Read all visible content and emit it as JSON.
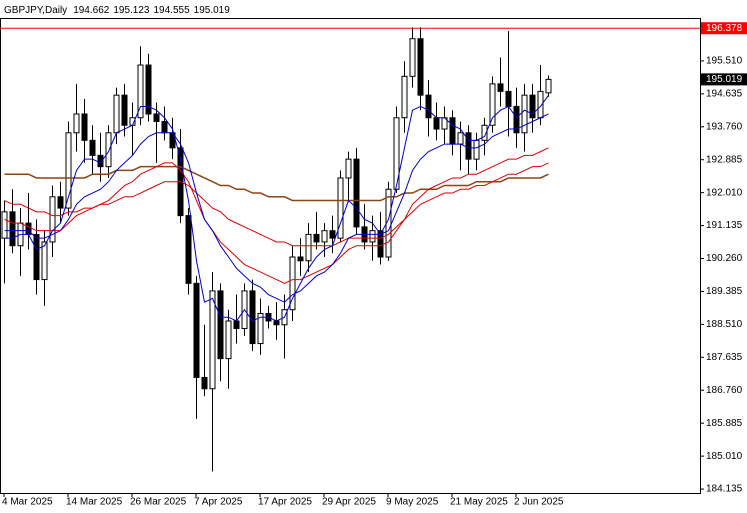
{
  "chart_data": {
    "type": "candlestick",
    "title": "GBPJPY,Daily",
    "categories": [
      "4 Mar 2025",
      null,
      null,
      null,
      null,
      null,
      null,
      null,
      "14 Mar 2025",
      null,
      null,
      null,
      null,
      null,
      null,
      null,
      "26 Mar 2025",
      null,
      null,
      null,
      null,
      null,
      null,
      null,
      "7 Apr 2025",
      null,
      null,
      null,
      null,
      null,
      null,
      null,
      "17 Apr 2025",
      null,
      null,
      null,
      null,
      null,
      null,
      null,
      "29 Apr 2025",
      null,
      null,
      null,
      null,
      null,
      null,
      null,
      "9 May 2025",
      null,
      null,
      null,
      null,
      null,
      null,
      null,
      "21 May 2025",
      null,
      null,
      null,
      null,
      null,
      null,
      null,
      "2 Jun 2025",
      null,
      null,
      null,
      null
    ],
    "open": [
      190.8,
      191.5,
      190.6,
      191.2,
      190.9,
      189.7,
      190.7,
      191.9,
      191.6,
      193.6,
      194.1,
      193.4,
      193.0,
      192.7,
      193.6,
      194.6,
      193.8,
      194.0,
      195.4,
      194.1,
      193.9,
      193.6,
      193.2,
      191.4,
      189.6,
      187.1,
      186.8,
      189.4,
      187.6,
      188.6,
      188.4,
      189.4,
      188.0,
      188.8,
      188.6,
      188.5,
      188.9,
      190.3,
      190.2,
      190.9,
      190.7,
      191.0,
      190.8,
      192.4,
      192.9,
      191.1,
      190.7,
      191.0,
      190.3,
      192.1,
      194.0,
      195.1,
      196.1,
      194.6,
      194.0,
      193.7,
      194.0,
      193.3,
      193.6,
      192.9,
      193.4,
      193.8,
      194.9,
      194.7,
      194.3,
      193.6,
      194.6,
      194.0,
      194.662
    ],
    "high": [
      191.8,
      192.1,
      191.6,
      192.0,
      191.3,
      191.0,
      192.2,
      192.3,
      193.9,
      194.9,
      194.5,
      193.8,
      193.6,
      193.8,
      194.8,
      194.9,
      194.4,
      195.9,
      195.7,
      194.4,
      194.3,
      194.0,
      193.7,
      191.6,
      189.8,
      188.5,
      189.9,
      189.6,
      188.9,
      189.3,
      189.6,
      189.7,
      189.2,
      189.0,
      189.1,
      189.3,
      190.6,
      190.8,
      191.2,
      191.5,
      191.2,
      191.4,
      192.6,
      193.1,
      193.2,
      191.7,
      191.4,
      191.5,
      192.3,
      194.3,
      195.5,
      196.4,
      196.4,
      195.0,
      194.4,
      194.3,
      194.2,
      193.9,
      193.8,
      193.6,
      194.0,
      195.1,
      195.6,
      196.3,
      194.8,
      194.9,
      194.9,
      195.4,
      195.123
    ],
    "low": [
      189.6,
      190.4,
      189.8,
      190.5,
      189.3,
      189.0,
      190.3,
      191.2,
      191.4,
      193.1,
      192.8,
      192.5,
      192.3,
      192.4,
      193.3,
      193.5,
      193.0,
      193.8,
      193.9,
      192.8,
      193.4,
      192.9,
      191.2,
      189.3,
      186.0,
      186.6,
      184.6,
      187.0,
      186.8,
      188.0,
      188.2,
      187.8,
      187.7,
      188.4,
      188.1,
      187.6,
      188.6,
      189.8,
      189.9,
      190.5,
      190.3,
      190.4,
      190.7,
      191.8,
      190.9,
      190.5,
      190.2,
      190.1,
      190.2,
      192.0,
      193.6,
      194.8,
      194.2,
      193.5,
      193.4,
      193.3,
      193.0,
      192.6,
      192.5,
      192.6,
      193.0,
      193.6,
      194.3,
      193.5,
      193.2,
      193.1,
      193.6,
      193.8,
      194.555
    ],
    "close": [
      191.5,
      190.6,
      191.2,
      190.9,
      189.7,
      190.7,
      191.9,
      191.6,
      193.6,
      194.1,
      193.4,
      193.0,
      192.7,
      193.6,
      194.6,
      193.8,
      194.0,
      195.4,
      194.1,
      193.9,
      193.6,
      193.2,
      191.4,
      189.6,
      187.1,
      186.8,
      189.4,
      187.6,
      188.6,
      188.4,
      189.4,
      188.0,
      188.8,
      188.6,
      188.5,
      188.9,
      190.3,
      190.2,
      190.9,
      190.7,
      191.0,
      190.8,
      192.4,
      192.9,
      191.1,
      190.7,
      191.0,
      190.3,
      192.1,
      194.0,
      195.1,
      196.1,
      194.6,
      194.0,
      193.7,
      194.0,
      193.3,
      193.6,
      192.9,
      193.4,
      193.8,
      194.9,
      194.7,
      194.3,
      193.6,
      194.6,
      194.0,
      194.7,
      195.019
    ],
    "up_color": "#ffffff",
    "down_color": "#000000",
    "series": [
      {
        "color": "#8b4513",
        "values": [
          192.5,
          192.5,
          192.5,
          192.5,
          192.4,
          192.4,
          192.4,
          192.4,
          192.4,
          192.4,
          192.4,
          192.5,
          192.5,
          192.5,
          192.6,
          192.6,
          192.6,
          192.7,
          192.7,
          192.7,
          192.7,
          192.7,
          192.7,
          192.6,
          192.5,
          192.4,
          192.3,
          192.2,
          192.2,
          192.1,
          192.1,
          192.0,
          192.0,
          191.9,
          191.9,
          191.9,
          191.8,
          191.8,
          191.8,
          191.8,
          191.8,
          191.8,
          191.8,
          191.8,
          191.8,
          191.8,
          191.8,
          191.8,
          191.9,
          191.9,
          192.0,
          192.0,
          192.1,
          192.1,
          192.1,
          192.2,
          192.2,
          192.2,
          192.2,
          192.3,
          192.3,
          192.3,
          192.3,
          192.4,
          192.4,
          192.4,
          192.4,
          192.4,
          192.5
        ]
      },
      {
        "color": "#dc0000",
        "values": [
          191.8,
          191.7,
          191.7,
          191.6,
          191.5,
          191.5,
          191.4,
          191.4,
          191.5,
          191.5,
          191.6,
          191.6,
          191.7,
          191.7,
          191.8,
          191.9,
          191.9,
          192.0,
          192.1,
          192.2,
          192.3,
          192.3,
          192.3,
          192.2,
          192.0,
          191.8,
          191.6,
          191.5,
          191.3,
          191.2,
          191.1,
          191.0,
          190.9,
          190.8,
          190.7,
          190.7,
          190.6,
          190.6,
          190.6,
          190.6,
          190.6,
          190.6,
          190.7,
          190.8,
          190.8,
          190.8,
          190.8,
          190.8,
          190.9,
          191.1,
          191.3,
          191.5,
          191.7,
          191.8,
          191.9,
          192.0,
          192.0,
          192.1,
          192.1,
          192.2,
          192.2,
          192.3,
          192.4,
          192.5,
          192.5,
          192.6,
          192.7,
          192.7,
          192.8
        ]
      },
      {
        "color": "#dc0000",
        "values": [
          191.3,
          191.2,
          191.2,
          191.1,
          191.0,
          191.0,
          191.0,
          191.0,
          191.2,
          191.4,
          191.5,
          191.6,
          191.7,
          191.8,
          192.0,
          192.2,
          192.3,
          192.5,
          192.6,
          192.7,
          192.8,
          192.8,
          192.6,
          192.3,
          191.8,
          191.3,
          191.0,
          190.7,
          190.5,
          190.3,
          190.1,
          190.0,
          189.9,
          189.8,
          189.7,
          189.6,
          189.7,
          189.7,
          189.8,
          189.9,
          190.0,
          190.1,
          190.3,
          190.5,
          190.6,
          190.6,
          190.6,
          190.6,
          190.7,
          191.0,
          191.3,
          191.7,
          191.9,
          192.1,
          192.2,
          192.3,
          192.4,
          192.4,
          192.5,
          192.5,
          192.6,
          192.7,
          192.8,
          192.9,
          192.9,
          193.0,
          193.0,
          193.1,
          193.2
        ]
      },
      {
        "color": "#0000cd",
        "values": [
          191.0,
          191.0,
          191.0,
          191.0,
          190.8,
          190.8,
          190.9,
          191.0,
          191.3,
          191.7,
          191.9,
          192.0,
          192.1,
          192.3,
          192.6,
          192.8,
          193.0,
          193.3,
          193.5,
          193.6,
          193.6,
          193.6,
          193.3,
          192.8,
          192.0,
          191.3,
          191.0,
          190.6,
          190.3,
          190.0,
          189.8,
          189.6,
          189.5,
          189.3,
          189.2,
          189.1,
          189.3,
          189.4,
          189.6,
          189.8,
          189.9,
          190.1,
          190.4,
          190.8,
          190.9,
          190.9,
          190.9,
          190.9,
          191.0,
          191.5,
          192.0,
          192.6,
          192.9,
          193.1,
          193.2,
          193.3,
          193.3,
          193.3,
          193.2,
          193.2,
          193.3,
          193.5,
          193.6,
          193.7,
          193.7,
          193.8,
          193.9,
          194.0,
          194.1
        ]
      },
      {
        "color": "#0000cd",
        "values": [
          190.8,
          190.8,
          190.9,
          190.9,
          190.5,
          190.6,
          191.0,
          191.2,
          191.9,
          192.6,
          192.9,
          192.9,
          192.8,
          193.1,
          193.6,
          193.7,
          193.8,
          194.3,
          194.3,
          194.2,
          194.0,
          193.7,
          192.9,
          191.8,
          190.2,
          189.1,
          189.2,
          188.7,
          188.7,
          188.6,
          188.9,
          188.6,
          188.7,
          188.7,
          188.6,
          188.7,
          189.2,
          189.6,
          190.0,
          190.3,
          190.5,
          190.6,
          191.2,
          191.8,
          191.6,
          191.3,
          191.2,
          190.9,
          191.3,
          192.2,
          193.2,
          194.2,
          194.3,
          194.2,
          194.0,
          194.0,
          193.8,
          193.7,
          193.4,
          193.4,
          193.5,
          194.0,
          194.2,
          194.3,
          194.0,
          194.2,
          194.1,
          194.3,
          194.6
        ]
      }
    ],
    "hline": {
      "value": 196.378,
      "color": "#ff0000"
    },
    "ylim": [
      184.03,
      196.65
    ],
    "yticks": [
      {
        "value": 195.51,
        "label": "195.510"
      },
      194.635,
      {
        "value": 193.76,
        "label": "193.760"
      },
      192.885,
      {
        "value": 192.01,
        "label": "192.010"
      },
      191.135,
      {
        "value": 190.26,
        "label": "190.260"
      },
      189.385,
      {
        "value": 188.51,
        "label": "188.510"
      },
      187.635,
      {
        "value": 186.76,
        "label": "186.760"
      },
      185.885,
      {
        "value": 185.01,
        "label": "185.010"
      },
      184.135
    ]
  }
}
